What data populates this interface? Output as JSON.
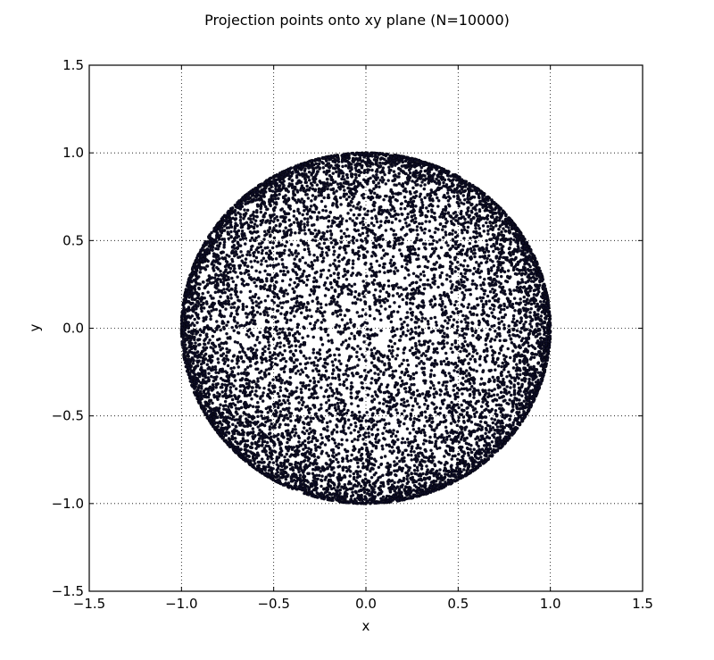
{
  "chart_data": {
    "type": "scatter",
    "title": "Projection points onto xy plane (N=10000)",
    "xlabel": "x",
    "ylabel": "y",
    "xlim": [
      -1.5,
      1.5
    ],
    "ylim": [
      -1.5,
      1.5
    ],
    "grid": true,
    "legend": "none",
    "x_ticks": [
      -1.5,
      -1.0,
      -0.5,
      0.0,
      0.5,
      1.0,
      1.5
    ],
    "y_ticks": [
      -1.5,
      -1.0,
      -0.5,
      0.0,
      0.5,
      1.0,
      1.5
    ],
    "x_tick_labels": [
      "−1.5",
      "−1.0",
      "−0.5",
      "0.0",
      "0.5",
      "1.0",
      "1.5"
    ],
    "y_tick_labels": [
      "−1.5",
      "−1.0",
      "−0.5",
      "0.0",
      "0.5",
      "1.0",
      "1.5"
    ],
    "series": [
      {
        "n_points": 10000,
        "distribution": "projection of points uniformly distributed on the unit sphere onto the xy plane",
        "radius": 1.0,
        "marker": "o",
        "color": "#0d0d26",
        "edge_color": "#000000"
      }
    ]
  }
}
